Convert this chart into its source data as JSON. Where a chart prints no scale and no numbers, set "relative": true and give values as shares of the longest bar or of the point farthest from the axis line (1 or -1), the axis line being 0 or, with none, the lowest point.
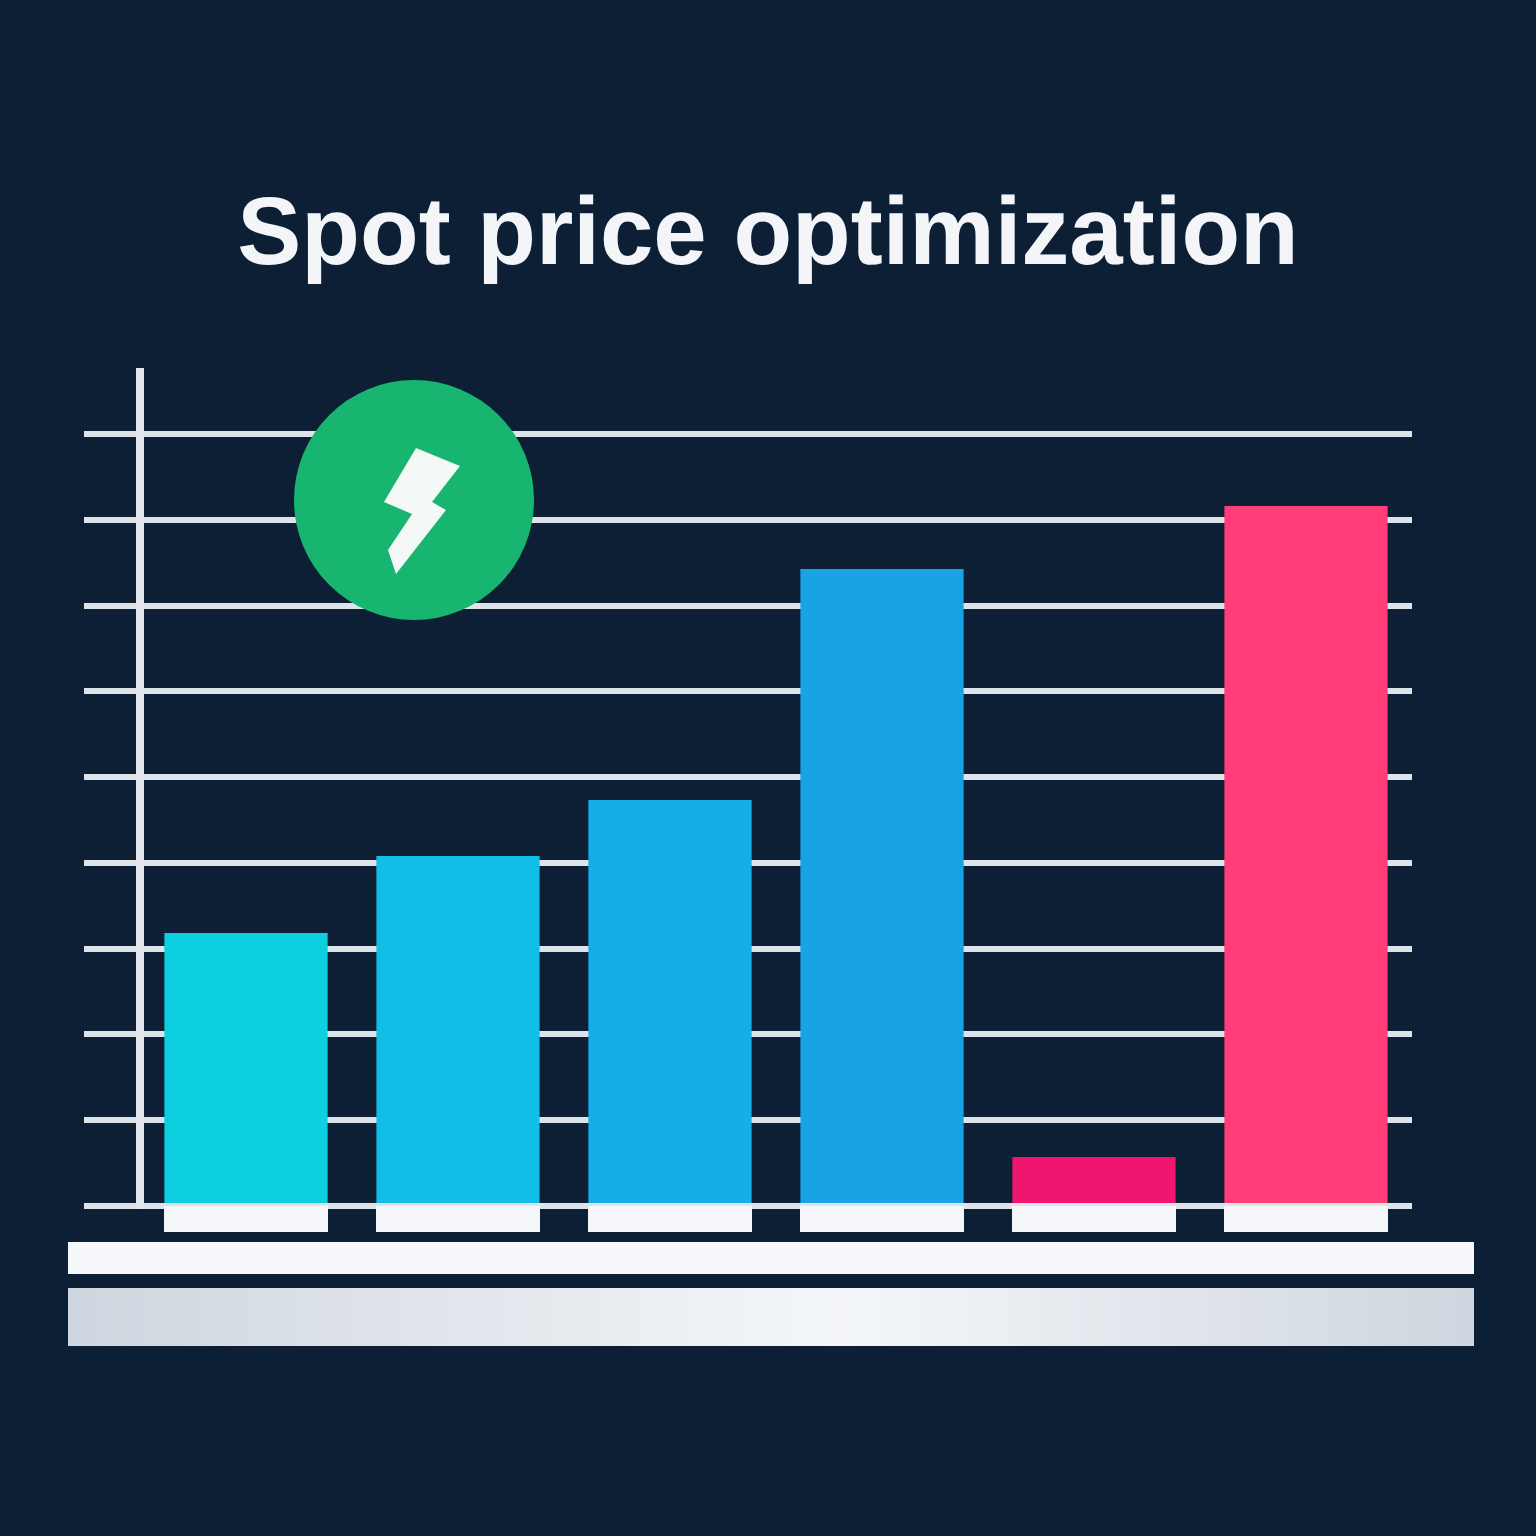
{
  "chart_data": {
    "type": "bar",
    "title": "Spot price optimization",
    "categories": [
      null,
      null,
      null,
      null,
      null,
      null
    ],
    "values": [
      0.39,
      0.5,
      0.58,
      0.91,
      0.07,
      1
    ],
    "colors": [
      "#0ccfdf",
      "#12bde6",
      "#16aee8",
      "#1aa2e6",
      "#f0156f",
      "#ff3d78"
    ],
    "relative": true,
    "grid": "y"
  }
}
